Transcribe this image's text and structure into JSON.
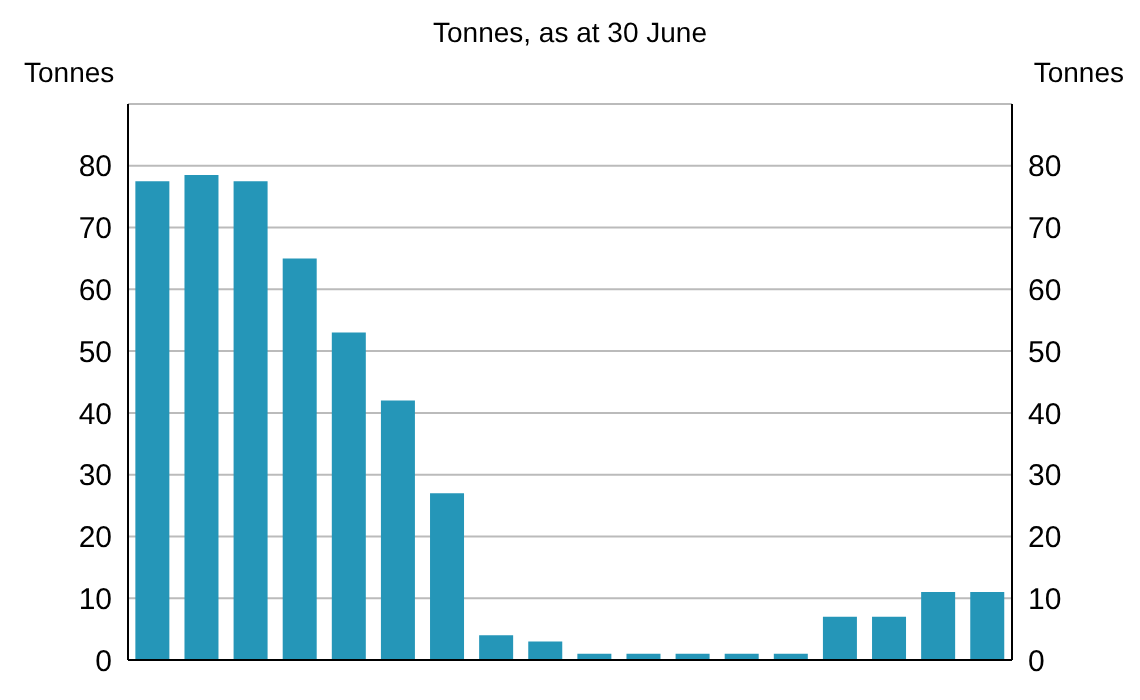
{
  "chart_data": {
    "type": "bar",
    "title": "Tonnes, as at 30 June",
    "ylabel": "Tonnes",
    "y2label": "Tonnes",
    "categories": [
      null,
      null,
      null,
      null,
      null,
      null,
      null,
      null,
      null,
      null,
      null,
      null,
      null,
      null,
      null,
      null,
      null,
      null
    ],
    "values": [
      77.5,
      78.5,
      77.5,
      65,
      53,
      42,
      27,
      4,
      3,
      1,
      1,
      1,
      1,
      1,
      7,
      7,
      11,
      11
    ],
    "color": "#2596b8",
    "ylim": [
      0,
      90
    ],
    "yticks": [
      0,
      10,
      20,
      30,
      40,
      50,
      60,
      70,
      80
    ],
    "y2lim": [
      0,
      90
    ],
    "y2ticks": [
      0,
      10,
      20,
      30,
      40,
      50,
      60,
      70,
      80
    ],
    "grid": "y"
  }
}
